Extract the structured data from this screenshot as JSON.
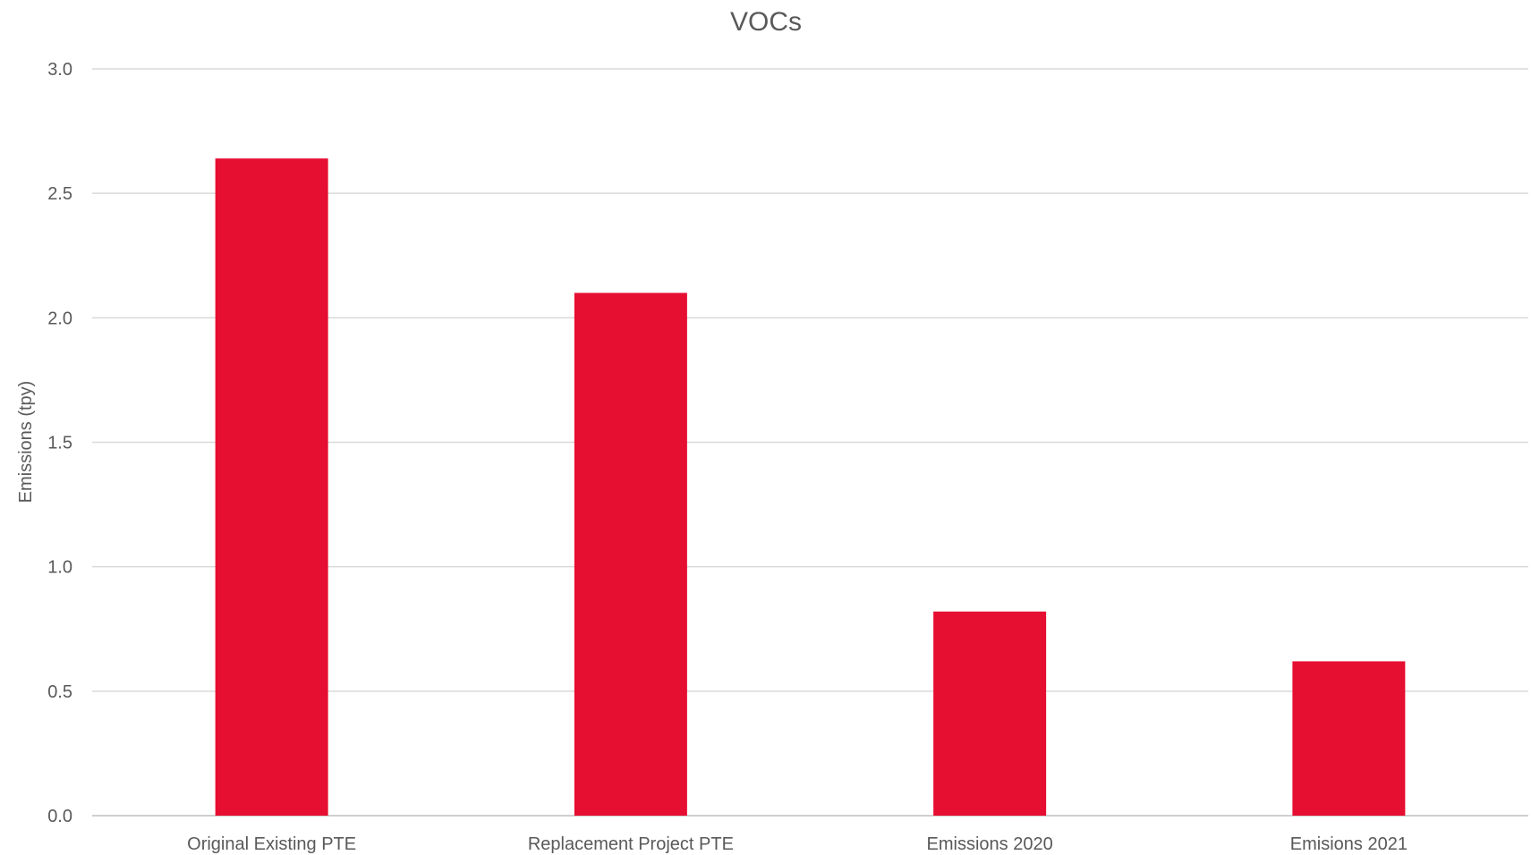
{
  "chart_data": {
    "type": "bar",
    "title": "VOCs",
    "ylabel": "Emissions (tpy)",
    "xlabel": "",
    "categories": [
      "Original Existing PTE",
      "Replacement Project PTE",
      "Emissions 2020",
      "Emisions 2021"
    ],
    "values": [
      2.64,
      2.1,
      0.82,
      0.62
    ],
    "ylim": [
      0,
      3.0
    ],
    "yticks": [
      "0.0",
      "0.5",
      "1.0",
      "1.5",
      "2.0",
      "2.5",
      "3.0"
    ],
    "grid": true,
    "legend": "none",
    "bar_color": "#E60E31"
  }
}
